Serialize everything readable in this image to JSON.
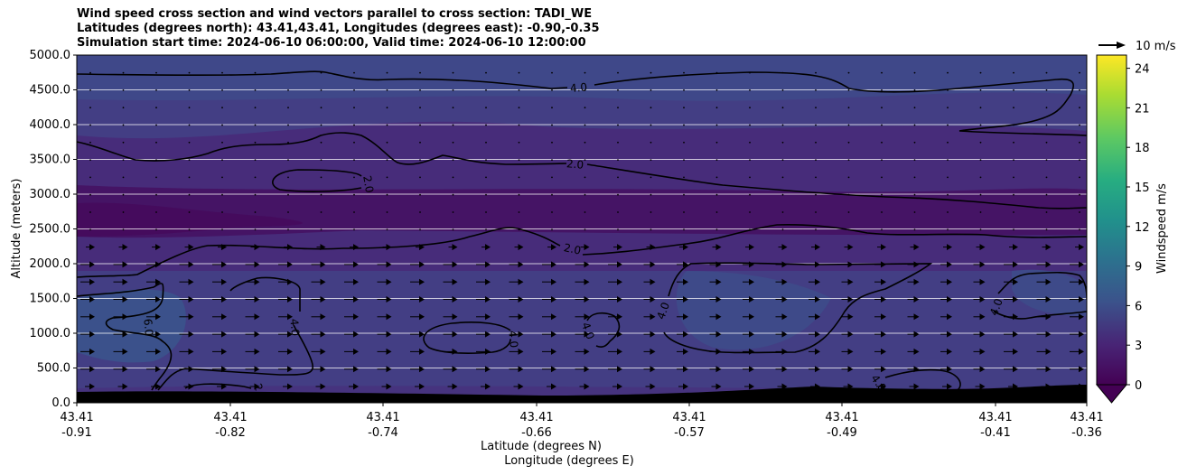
{
  "title_lines": [
    "Wind speed cross section and wind vectors parallel to cross section: TADI_WE",
    "Latitudes (degrees north): 43.41,43.41, Longitudes (degrees east): -0.90,-0.35",
    "Simulation start time: 2024-06-10 06:00:00, Valid time: 2024-06-10 12:00:00"
  ],
  "chart_data": {
    "type": "heatmap",
    "ylabel": "Altitude (meters)",
    "xlabel_lines": [
      "Latitude (degrees N)",
      "Longitude (degrees E)"
    ],
    "ylim": [
      0,
      5000
    ],
    "y_ticks": [
      "0.0",
      "500.0",
      "1000.0",
      "1500.0",
      "2000.0",
      "2500.0",
      "3000.0",
      "3500.0",
      "4000.0",
      "4500.0",
      "5000.0"
    ],
    "x_ticks": [
      {
        "lat": "43.41",
        "lon": "-0.91"
      },
      {
        "lat": "43.41",
        "lon": "-0.82"
      },
      {
        "lat": "43.41",
        "lon": "-0.74"
      },
      {
        "lat": "43.41",
        "lon": "-0.66"
      },
      {
        "lat": "43.41",
        "lon": "-0.57"
      },
      {
        "lat": "43.41",
        "lon": "-0.49"
      },
      {
        "lat": "43.41",
        "lon": "-0.41"
      },
      {
        "lat": "43.41",
        "lon": "-0.36"
      }
    ],
    "grid": "horizontal",
    "colorbar": {
      "label": "Windspeed m/s",
      "range": [
        0,
        25
      ],
      "ticks": [
        "0",
        "3",
        "6",
        "9",
        "12",
        "15",
        "18",
        "21",
        "24"
      ],
      "colormap": "viridis",
      "extend": "min"
    },
    "contour_labels": [
      "4.0",
      "2.0",
      "2.0",
      "2.0",
      "6.0",
      "4.0",
      "4.0",
      "4.0",
      "4.0",
      "4.0",
      "4.0",
      "2"
    ],
    "vector_reference": {
      "label": "10 m/s"
    },
    "vector_direction": "eastward in the lowest ~2200 m, near-calm aloft",
    "terrain_color": "#000000"
  }
}
